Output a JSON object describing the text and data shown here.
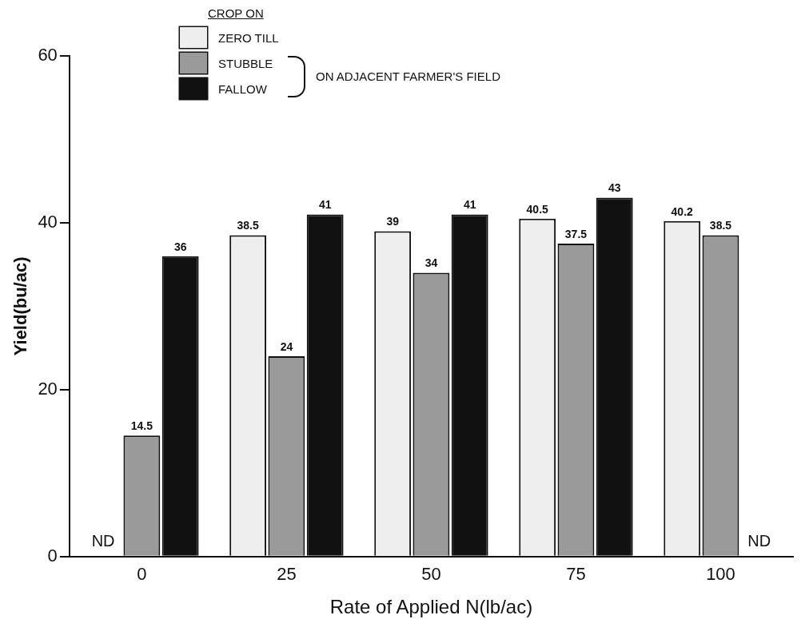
{
  "chart_data": {
    "type": "bar",
    "xlabel": "Rate of Applied N(lb/ac)",
    "ylabel": "Yield(bu/ac)",
    "legend_title": "CROP ON",
    "categories": [
      "0",
      "25",
      "50",
      "75",
      "100"
    ],
    "series": [
      {
        "name": "ZERO TILL",
        "color": "#eeeeee",
        "values": [
          null,
          38.5,
          39,
          40.5,
          40.2
        ]
      },
      {
        "name": "STUBBLE",
        "color": "#9a9a9a",
        "values": [
          14.5,
          24,
          34,
          37.5,
          38.5
        ]
      },
      {
        "name": "FALLOW",
        "color": "#111111",
        "values": [
          36,
          41,
          41,
          43,
          null
        ]
      }
    ],
    "ylim": [
      0,
      60
    ],
    "yticks": [
      0,
      20,
      40,
      60
    ],
    "grid": false,
    "legend": "top left",
    "data_labels": true,
    "annotations": [
      "ON ADJACENT FARMER'S FIELD",
      {
        "text": "ND",
        "x": "0",
        "y": 0
      },
      {
        "text": "ND",
        "x": "100",
        "y": 0
      }
    ]
  }
}
